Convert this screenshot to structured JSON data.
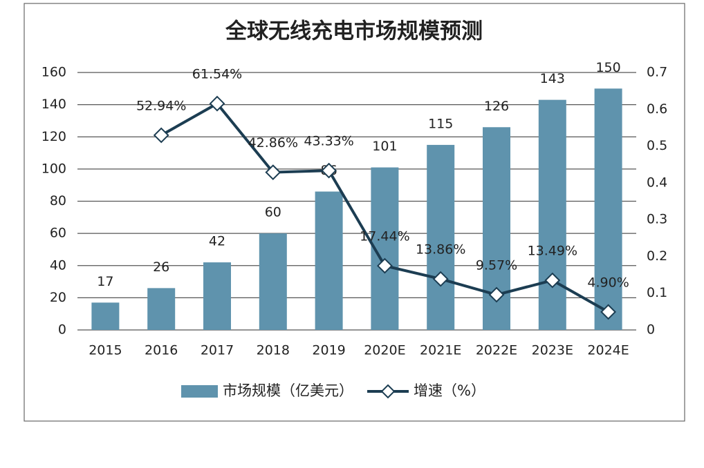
{
  "chart_data": {
    "type": "bar",
    "title": "全球无线充电市场规模预测",
    "categories": [
      "2015",
      "2016",
      "2017",
      "2018",
      "2019",
      "2020E",
      "2021E",
      "2022E",
      "2023E",
      "2024E"
    ],
    "series": [
      {
        "name": "市场规模（亿美元）",
        "type": "bar",
        "color": "#5f93ad",
        "values": [
          17,
          26,
          42,
          60,
          86,
          101,
          115,
          126,
          143,
          150
        ]
      },
      {
        "name": "增速（%）",
        "type": "line",
        "axis": "y2",
        "color": "#1c3d52",
        "values": [
          null,
          0.5294,
          0.6154,
          0.4286,
          0.4333,
          0.1744,
          0.1386,
          0.0957,
          0.1349,
          0.049
        ],
        "value_labels": [
          null,
          "52.94%",
          "61.54%",
          "42.86%",
          "43.33%",
          "17.44%",
          "13.86%",
          "9.57%",
          "13.49%",
          "4.90%"
        ]
      }
    ],
    "ylim": [
      0,
      160
    ],
    "yticks": [
      0,
      20,
      40,
      60,
      80,
      100,
      120,
      140,
      160
    ],
    "y2lim": [
      0,
      0.7
    ],
    "y2ticks": [
      0,
      0.1,
      0.2,
      0.3,
      0.4,
      0.5,
      0.6,
      0.7
    ],
    "grid": true,
    "legend": "bottom"
  }
}
